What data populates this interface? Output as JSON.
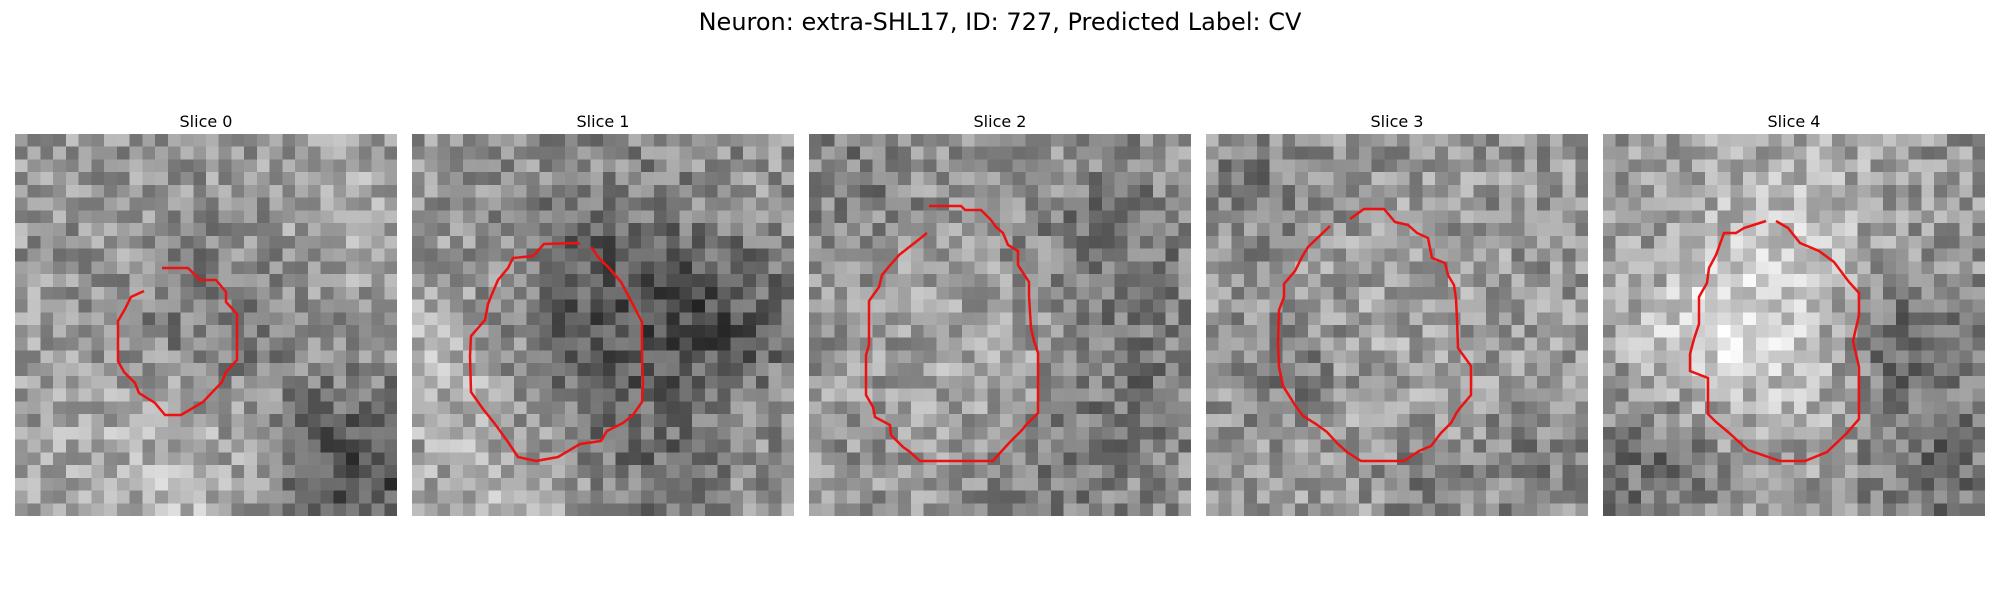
{
  "figure": {
    "title": "Neuron: extra-SHL17, ID: 727, Predicted Label: CV"
  },
  "colors": {
    "contour": "#ee1111",
    "background": "#ffffff"
  },
  "panels": [
    {
      "title": "Slice 0"
    },
    {
      "title": "Slice 1"
    },
    {
      "title": "Slice 2"
    },
    {
      "title": "Slice 3"
    },
    {
      "title": "Slice 4"
    }
  ]
}
